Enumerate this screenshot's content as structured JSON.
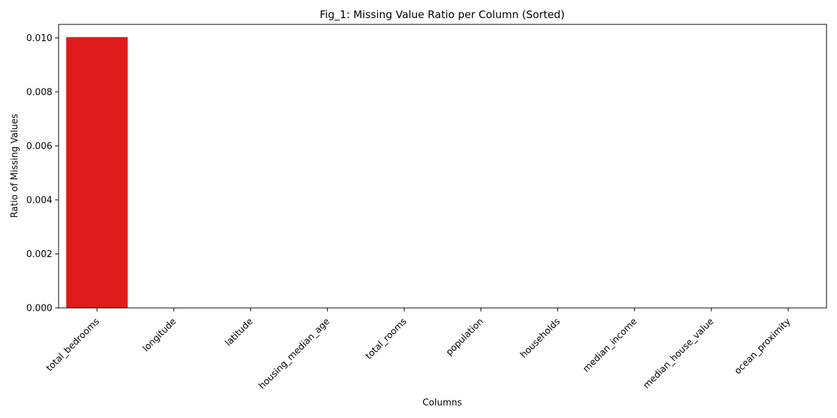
{
  "chart_data": {
    "type": "bar",
    "title": "Fig_1: Missing Value Ratio per Column (Sorted)",
    "xlabel": "Columns",
    "ylabel": "Ratio of Missing Values",
    "categories": [
      "total_bedrooms",
      "longitude",
      "latitude",
      "housing_median_age",
      "total_rooms",
      "population",
      "households",
      "median_income",
      "median_house_value",
      "ocean_proximity"
    ],
    "values": [
      0.01003,
      0,
      0,
      0,
      0,
      0,
      0,
      0,
      0,
      0
    ],
    "ylim": [
      0,
      0.0105
    ],
    "yticks": [
      "0.000",
      "0.002",
      "0.004",
      "0.006",
      "0.008",
      "0.010"
    ],
    "bar_color": "#e01b1b",
    "grid": false,
    "legend": "none"
  }
}
